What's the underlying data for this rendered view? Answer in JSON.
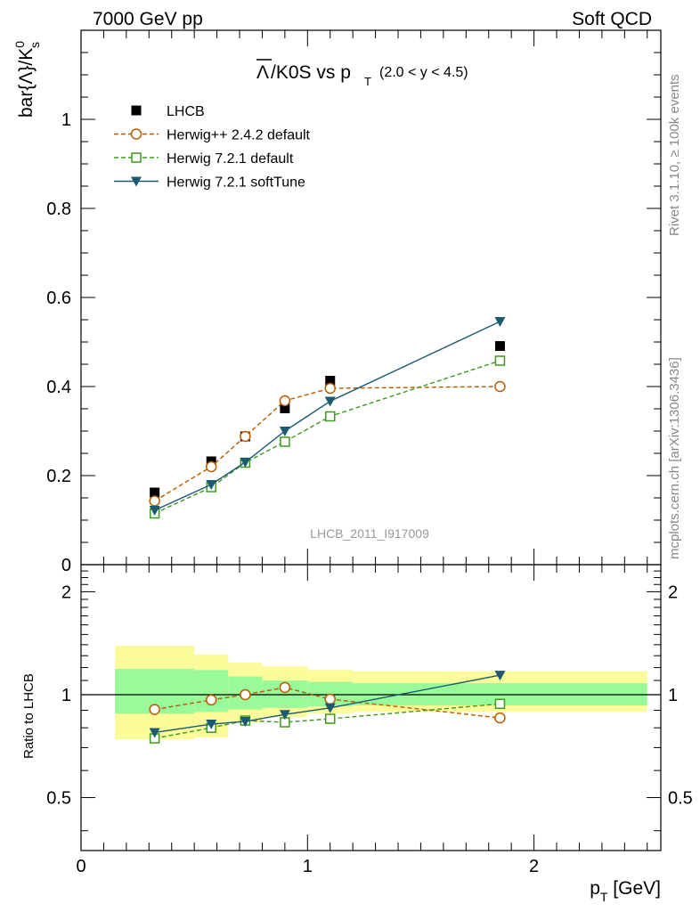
{
  "header": {
    "left": "7000 GeV pp",
    "right": "Soft QCD"
  },
  "side_labels": {
    "rivet": "Rivet 3.1.10, ≥ 100k events",
    "mcplots": "mcplots.cern.ch [arXiv:1306.3436]"
  },
  "watermark": "LHCB_2011_I917009",
  "title": {
    "main": "/K0S vs p",
    "overline_symbol": "Λ",
    "main_sub": "T",
    "range": "(2.0 < y < 4.5)"
  },
  "axes": {
    "ylabel_main_prefix": "bar{Λ}/K",
    "ylabel_main_sup": "0",
    "ylabel_main_sub": "s",
    "ylabel_ratio": "Ratio to LHCB",
    "xlabel_prefix": "p",
    "xlabel_sub": "T",
    "xlabel_unit": " [GeV]"
  },
  "colors": {
    "lhcb": "#000000",
    "herwigpp": "#b85a00",
    "herwig721": "#3c9a1c",
    "softtune": "#1b5a70",
    "band_inner": "#99fa99",
    "band_outer": "#fbfb99"
  },
  "chart_data": [
    {
      "type": "scatter",
      "panel": "main",
      "x_range": [
        0,
        2.56
      ],
      "ylim": [
        0,
        1.2
      ],
      "y_ticks": [
        0,
        0.2,
        0.4,
        0.6,
        0.8,
        1
      ],
      "y_tick_labels": [
        "0",
        "0.2",
        "0.4",
        "0.6",
        "0.8",
        "1"
      ],
      "legend_placement": "top-left",
      "series": [
        {
          "key": "lhcb",
          "name": "LHCB",
          "style": "marker-square-filled",
          "x": [
            0.325,
            0.575,
            0.725,
            0.9,
            1.1,
            1.85
          ],
          "y": [
            0.162,
            0.232,
            0.288,
            0.351,
            0.413,
            0.491
          ]
        },
        {
          "key": "herwigpp",
          "name": "Herwig++ 2.4.2 default",
          "style": "dashed-open-circle",
          "x": [
            0.325,
            0.575,
            0.725,
            0.9,
            1.1,
            1.85
          ],
          "y": [
            0.143,
            0.22,
            0.288,
            0.368,
            0.396,
            0.4
          ]
        },
        {
          "key": "herwig721",
          "name": "Herwig 7.2.1 default",
          "style": "dashed-open-square",
          "x": [
            0.325,
            0.575,
            0.725,
            0.9,
            1.1,
            1.85
          ],
          "y": [
            0.115,
            0.174,
            0.229,
            0.276,
            0.333,
            0.458
          ]
        },
        {
          "key": "softtune",
          "name": "Herwig 7.2.1 softTune",
          "style": "solid-filled-triangle-down",
          "x": [
            0.325,
            0.575,
            0.725,
            0.9,
            1.1,
            1.85
          ],
          "y": [
            0.122,
            0.18,
            0.23,
            0.3,
            0.367,
            0.546
          ]
        }
      ]
    },
    {
      "type": "scatter",
      "panel": "ratio",
      "x_range": [
        0,
        2.56
      ],
      "ylim": [
        0.35,
        2.4
      ],
      "y_scale": "log",
      "x_ticks": [
        0,
        1,
        2
      ],
      "x_tick_labels": [
        "0",
        "1",
        "2"
      ],
      "y_ticks": [
        0.5,
        1,
        2
      ],
      "y_tick_labels": [
        "0.5",
        "1",
        "2"
      ],
      "reference_line": 1,
      "bands": {
        "bin_edges": [
          0.15,
          0.5,
          0.65,
          0.8,
          1.0,
          1.2,
          2.5
        ],
        "inner_low": [
          0.88,
          0.89,
          0.905,
          0.915,
          0.925,
          0.93
        ],
        "inner_high": [
          1.19,
          1.18,
          1.13,
          1.1,
          1.09,
          1.08
        ],
        "outer_low": [
          0.74,
          0.75,
          0.83,
          0.86,
          0.88,
          0.89
        ],
        "outer_high": [
          1.39,
          1.31,
          1.24,
          1.21,
          1.18,
          1.17
        ]
      },
      "series": [
        {
          "key": "herwigpp",
          "x": [
            0.325,
            0.575,
            0.725,
            0.9,
            1.1,
            1.85
          ],
          "y": [
            0.905,
            0.965,
            1.0,
            1.05,
            0.97,
            0.855
          ]
        },
        {
          "key": "herwig721",
          "x": [
            0.325,
            0.575,
            0.725,
            0.9,
            1.1,
            1.85
          ],
          "y": [
            0.745,
            0.8,
            0.84,
            0.83,
            0.85,
            0.94
          ]
        },
        {
          "key": "softtune",
          "x": [
            0.325,
            0.575,
            0.725,
            0.9,
            1.1,
            1.85
          ],
          "y": [
            0.775,
            0.82,
            0.835,
            0.875,
            0.915,
            1.14
          ]
        }
      ]
    }
  ]
}
